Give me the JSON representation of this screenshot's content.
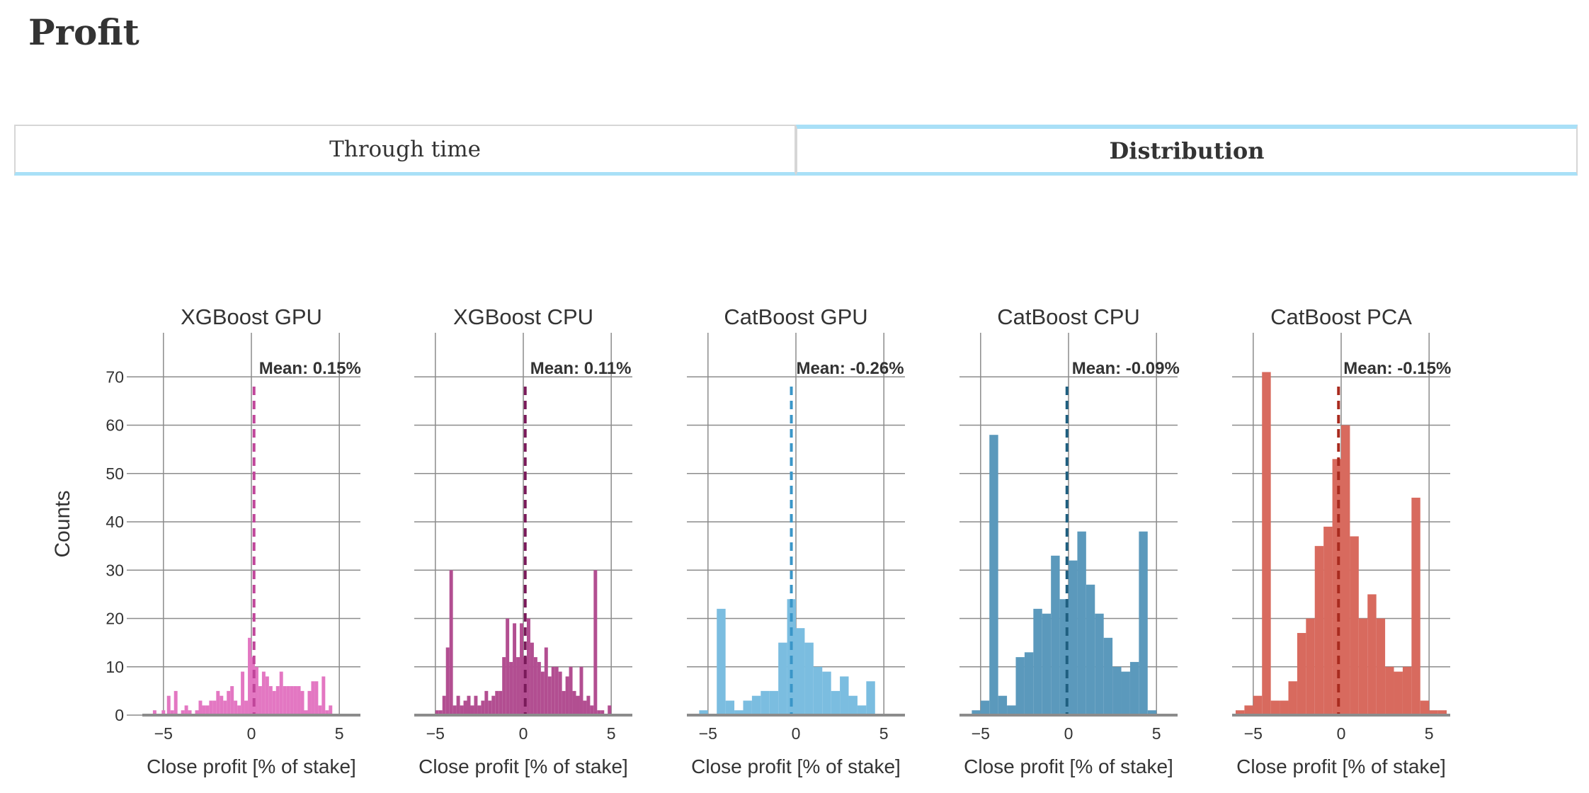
{
  "page": {
    "title": "Profit"
  },
  "tabs": [
    {
      "label": "Through time",
      "active": false
    },
    {
      "label": "Distribution",
      "active": true
    }
  ],
  "colors": {
    "grid": "#8c8c8c",
    "axis": "#8c8c8c",
    "text": "#333333"
  },
  "chart_data": {
    "type": "bar",
    "subtype": "histogram-small-multiples",
    "ylabel": "Counts",
    "ylim": [
      0,
      74
    ],
    "yticks": [
      0,
      10,
      20,
      30,
      40,
      50,
      60,
      70
    ],
    "xlim": [
      -6.2,
      6.2
    ],
    "xticks": [
      -5,
      0,
      5
    ],
    "xtick_labels": [
      "−5",
      "0",
      "5"
    ],
    "grid": true,
    "panels": [
      {
        "title": "XGBoost GPU",
        "xlabel": "Close profit [% of stake]",
        "color": "#e377c2",
        "line_color": "#c0469a",
        "mean": 0.15,
        "mean_label": "Mean: 0.15%",
        "bins": [
          [
            -5.6,
            -5.4,
            1
          ],
          [
            -5.1,
            -4.9,
            1
          ],
          [
            -4.8,
            -4.6,
            4
          ],
          [
            -4.6,
            -4.4,
            1
          ],
          [
            -4.4,
            -4.2,
            5
          ],
          [
            -4.0,
            -3.8,
            1
          ],
          [
            -3.8,
            -3.6,
            2
          ],
          [
            -3.6,
            -3.4,
            1
          ],
          [
            -3.2,
            -3.0,
            1
          ],
          [
            -3.0,
            -2.8,
            3
          ],
          [
            -2.8,
            -2.6,
            2
          ],
          [
            -2.6,
            -2.4,
            2
          ],
          [
            -2.4,
            -2.2,
            3
          ],
          [
            -2.2,
            -2.0,
            3
          ],
          [
            -2.0,
            -1.8,
            5
          ],
          [
            -1.8,
            -1.6,
            4
          ],
          [
            -1.6,
            -1.4,
            3
          ],
          [
            -1.4,
            -1.2,
            5
          ],
          [
            -1.2,
            -1.0,
            6
          ],
          [
            -1.0,
            -0.8,
            3
          ],
          [
            -0.8,
            -0.6,
            2
          ],
          [
            -0.6,
            -0.4,
            9
          ],
          [
            -0.4,
            -0.2,
            3
          ],
          [
            -0.2,
            0.0,
            16
          ],
          [
            0.0,
            0.2,
            12
          ],
          [
            0.2,
            0.4,
            10
          ],
          [
            0.4,
            0.6,
            6
          ],
          [
            0.6,
            0.8,
            9
          ],
          [
            0.8,
            1.0,
            8
          ],
          [
            1.0,
            1.2,
            6
          ],
          [
            1.2,
            1.4,
            5
          ],
          [
            1.4,
            1.6,
            6
          ],
          [
            1.6,
            1.8,
            9
          ],
          [
            1.8,
            2.0,
            6
          ],
          [
            2.0,
            2.2,
            6
          ],
          [
            2.2,
            2.4,
            6
          ],
          [
            2.4,
            2.6,
            6
          ],
          [
            2.6,
            2.8,
            6
          ],
          [
            2.8,
            3.0,
            5
          ],
          [
            3.0,
            3.2,
            1
          ],
          [
            3.2,
            3.4,
            5
          ],
          [
            3.4,
            3.6,
            7
          ],
          [
            3.6,
            3.8,
            7
          ],
          [
            3.8,
            4.0,
            2
          ],
          [
            4.0,
            4.2,
            8
          ],
          [
            4.2,
            4.4,
            1
          ],
          [
            4.4,
            4.6,
            2
          ]
        ]
      },
      {
        "title": "XGBoost CPU",
        "xlabel": "Close profit [% of stake]",
        "color": "#b24e91",
        "line_color": "#7a1a5a",
        "mean": 0.11,
        "mean_label": "Mean: 0.11%",
        "bins": [
          [
            -5.0,
            -4.8,
            1
          ],
          [
            -4.8,
            -4.6,
            1
          ],
          [
            -4.6,
            -4.4,
            4
          ],
          [
            -4.4,
            -4.2,
            14
          ],
          [
            -4.2,
            -4.0,
            30
          ],
          [
            -4.0,
            -3.8,
            2
          ],
          [
            -3.8,
            -3.6,
            4
          ],
          [
            -3.6,
            -3.4,
            2
          ],
          [
            -3.4,
            -3.2,
            3
          ],
          [
            -3.2,
            -3.0,
            4
          ],
          [
            -3.0,
            -2.8,
            2
          ],
          [
            -2.8,
            -2.6,
            4
          ],
          [
            -2.6,
            -2.4,
            2
          ],
          [
            -2.4,
            -2.2,
            3
          ],
          [
            -2.2,
            -2.0,
            5
          ],
          [
            -2.0,
            -1.8,
            3
          ],
          [
            -1.8,
            -1.6,
            4
          ],
          [
            -1.6,
            -1.4,
            5
          ],
          [
            -1.4,
            -1.2,
            5
          ],
          [
            -1.2,
            -1.0,
            12
          ],
          [
            -1.0,
            -0.8,
            20
          ],
          [
            -0.8,
            -0.6,
            11
          ],
          [
            -0.6,
            -0.4,
            19
          ],
          [
            -0.4,
            -0.2,
            12
          ],
          [
            -0.2,
            0.0,
            19
          ],
          [
            0.0,
            0.2,
            12
          ],
          [
            0.2,
            0.4,
            20
          ],
          [
            0.4,
            0.6,
            15
          ],
          [
            0.6,
            0.8,
            12
          ],
          [
            0.8,
            1.0,
            11
          ],
          [
            1.0,
            1.2,
            9
          ],
          [
            1.2,
            1.4,
            14
          ],
          [
            1.4,
            1.6,
            8
          ],
          [
            1.6,
            1.8,
            10
          ],
          [
            1.8,
            2.0,
            10
          ],
          [
            2.0,
            2.2,
            9
          ],
          [
            2.2,
            2.4,
            5
          ],
          [
            2.4,
            2.6,
            8
          ],
          [
            2.6,
            2.8,
            10
          ],
          [
            2.8,
            3.0,
            5
          ],
          [
            3.0,
            3.2,
            4
          ],
          [
            3.2,
            3.4,
            10
          ],
          [
            3.4,
            3.6,
            3
          ],
          [
            3.6,
            3.8,
            4
          ],
          [
            3.8,
            4.0,
            2
          ],
          [
            4.0,
            4.2,
            30
          ],
          [
            4.2,
            4.4,
            1
          ],
          [
            4.4,
            4.6,
            1
          ],
          [
            4.8,
            5.0,
            2
          ]
        ]
      },
      {
        "title": "CatBoost GPU",
        "xlabel": "Close profit [% of stake]",
        "color": "#7bbde0",
        "line_color": "#3a96c8",
        "mean": -0.26,
        "mean_label": "Mean: -0.26%",
        "bins": [
          [
            -5.5,
            -5.0,
            1
          ],
          [
            -4.5,
            -4.0,
            22
          ],
          [
            -4.0,
            -3.5,
            3
          ],
          [
            -3.5,
            -3.0,
            1
          ],
          [
            -3.0,
            -2.5,
            3
          ],
          [
            -2.5,
            -2.0,
            4
          ],
          [
            -2.0,
            -1.5,
            5
          ],
          [
            -1.5,
            -1.0,
            5
          ],
          [
            -1.0,
            -0.5,
            15
          ],
          [
            -0.5,
            0.0,
            24
          ],
          [
            0.0,
            0.5,
            18
          ],
          [
            0.5,
            1.0,
            15
          ],
          [
            1.0,
            1.5,
            10
          ],
          [
            1.5,
            2.0,
            9
          ],
          [
            2.0,
            2.5,
            5
          ],
          [
            2.5,
            3.0,
            8
          ],
          [
            3.0,
            3.5,
            4
          ],
          [
            3.5,
            4.0,
            2
          ],
          [
            4.0,
            4.5,
            7
          ]
        ]
      },
      {
        "title": "CatBoost CPU",
        "xlabel": "Close profit [% of stake]",
        "color": "#5b99bc",
        "line_color": "#1f5f80",
        "mean": -0.09,
        "mean_label": "Mean: -0.09%",
        "bins": [
          [
            -5.5,
            -5.0,
            1
          ],
          [
            -5.0,
            -4.5,
            3
          ],
          [
            -4.5,
            -4.0,
            58
          ],
          [
            -4.0,
            -3.5,
            4
          ],
          [
            -3.5,
            -3.0,
            2
          ],
          [
            -3.0,
            -2.5,
            12
          ],
          [
            -2.5,
            -2.0,
            13
          ],
          [
            -2.0,
            -1.5,
            22
          ],
          [
            -1.5,
            -1.0,
            21
          ],
          [
            -1.0,
            -0.5,
            33
          ],
          [
            -0.5,
            0.0,
            24
          ],
          [
            0.0,
            0.5,
            32
          ],
          [
            0.5,
            1.0,
            38
          ],
          [
            1.0,
            1.5,
            27
          ],
          [
            1.5,
            2.0,
            21
          ],
          [
            2.0,
            2.5,
            16
          ],
          [
            2.5,
            3.0,
            10
          ],
          [
            3.0,
            3.5,
            9
          ],
          [
            3.5,
            4.0,
            11
          ],
          [
            4.0,
            4.5,
            38
          ],
          [
            4.5,
            5.0,
            1
          ]
        ]
      },
      {
        "title": "CatBoost PCA",
        "xlabel": "Close profit [% of stake]",
        "color": "#d86a5e",
        "line_color": "#a82a1e",
        "mean": -0.15,
        "mean_label": "Mean: -0.15%",
        "bins": [
          [
            -6.0,
            -5.5,
            1
          ],
          [
            -5.5,
            -5.0,
            2
          ],
          [
            -5.0,
            -4.5,
            4
          ],
          [
            -4.5,
            -4.0,
            71
          ],
          [
            -4.0,
            -3.5,
            3
          ],
          [
            -3.5,
            -3.0,
            3
          ],
          [
            -3.0,
            -2.5,
            7
          ],
          [
            -2.5,
            -2.0,
            17
          ],
          [
            -2.0,
            -1.5,
            20
          ],
          [
            -1.5,
            -1.0,
            35
          ],
          [
            -1.0,
            -0.5,
            39
          ],
          [
            -0.5,
            0.0,
            53
          ],
          [
            0.0,
            0.5,
            60
          ],
          [
            0.5,
            1.0,
            37
          ],
          [
            1.0,
            1.5,
            20
          ],
          [
            1.5,
            2.0,
            25
          ],
          [
            2.0,
            2.5,
            20
          ],
          [
            2.5,
            3.0,
            10
          ],
          [
            3.0,
            3.5,
            9
          ],
          [
            3.5,
            4.0,
            10
          ],
          [
            4.0,
            4.5,
            45
          ],
          [
            4.5,
            5.0,
            3
          ],
          [
            5.0,
            5.5,
            1
          ],
          [
            5.5,
            6.0,
            1
          ]
        ]
      }
    ]
  }
}
